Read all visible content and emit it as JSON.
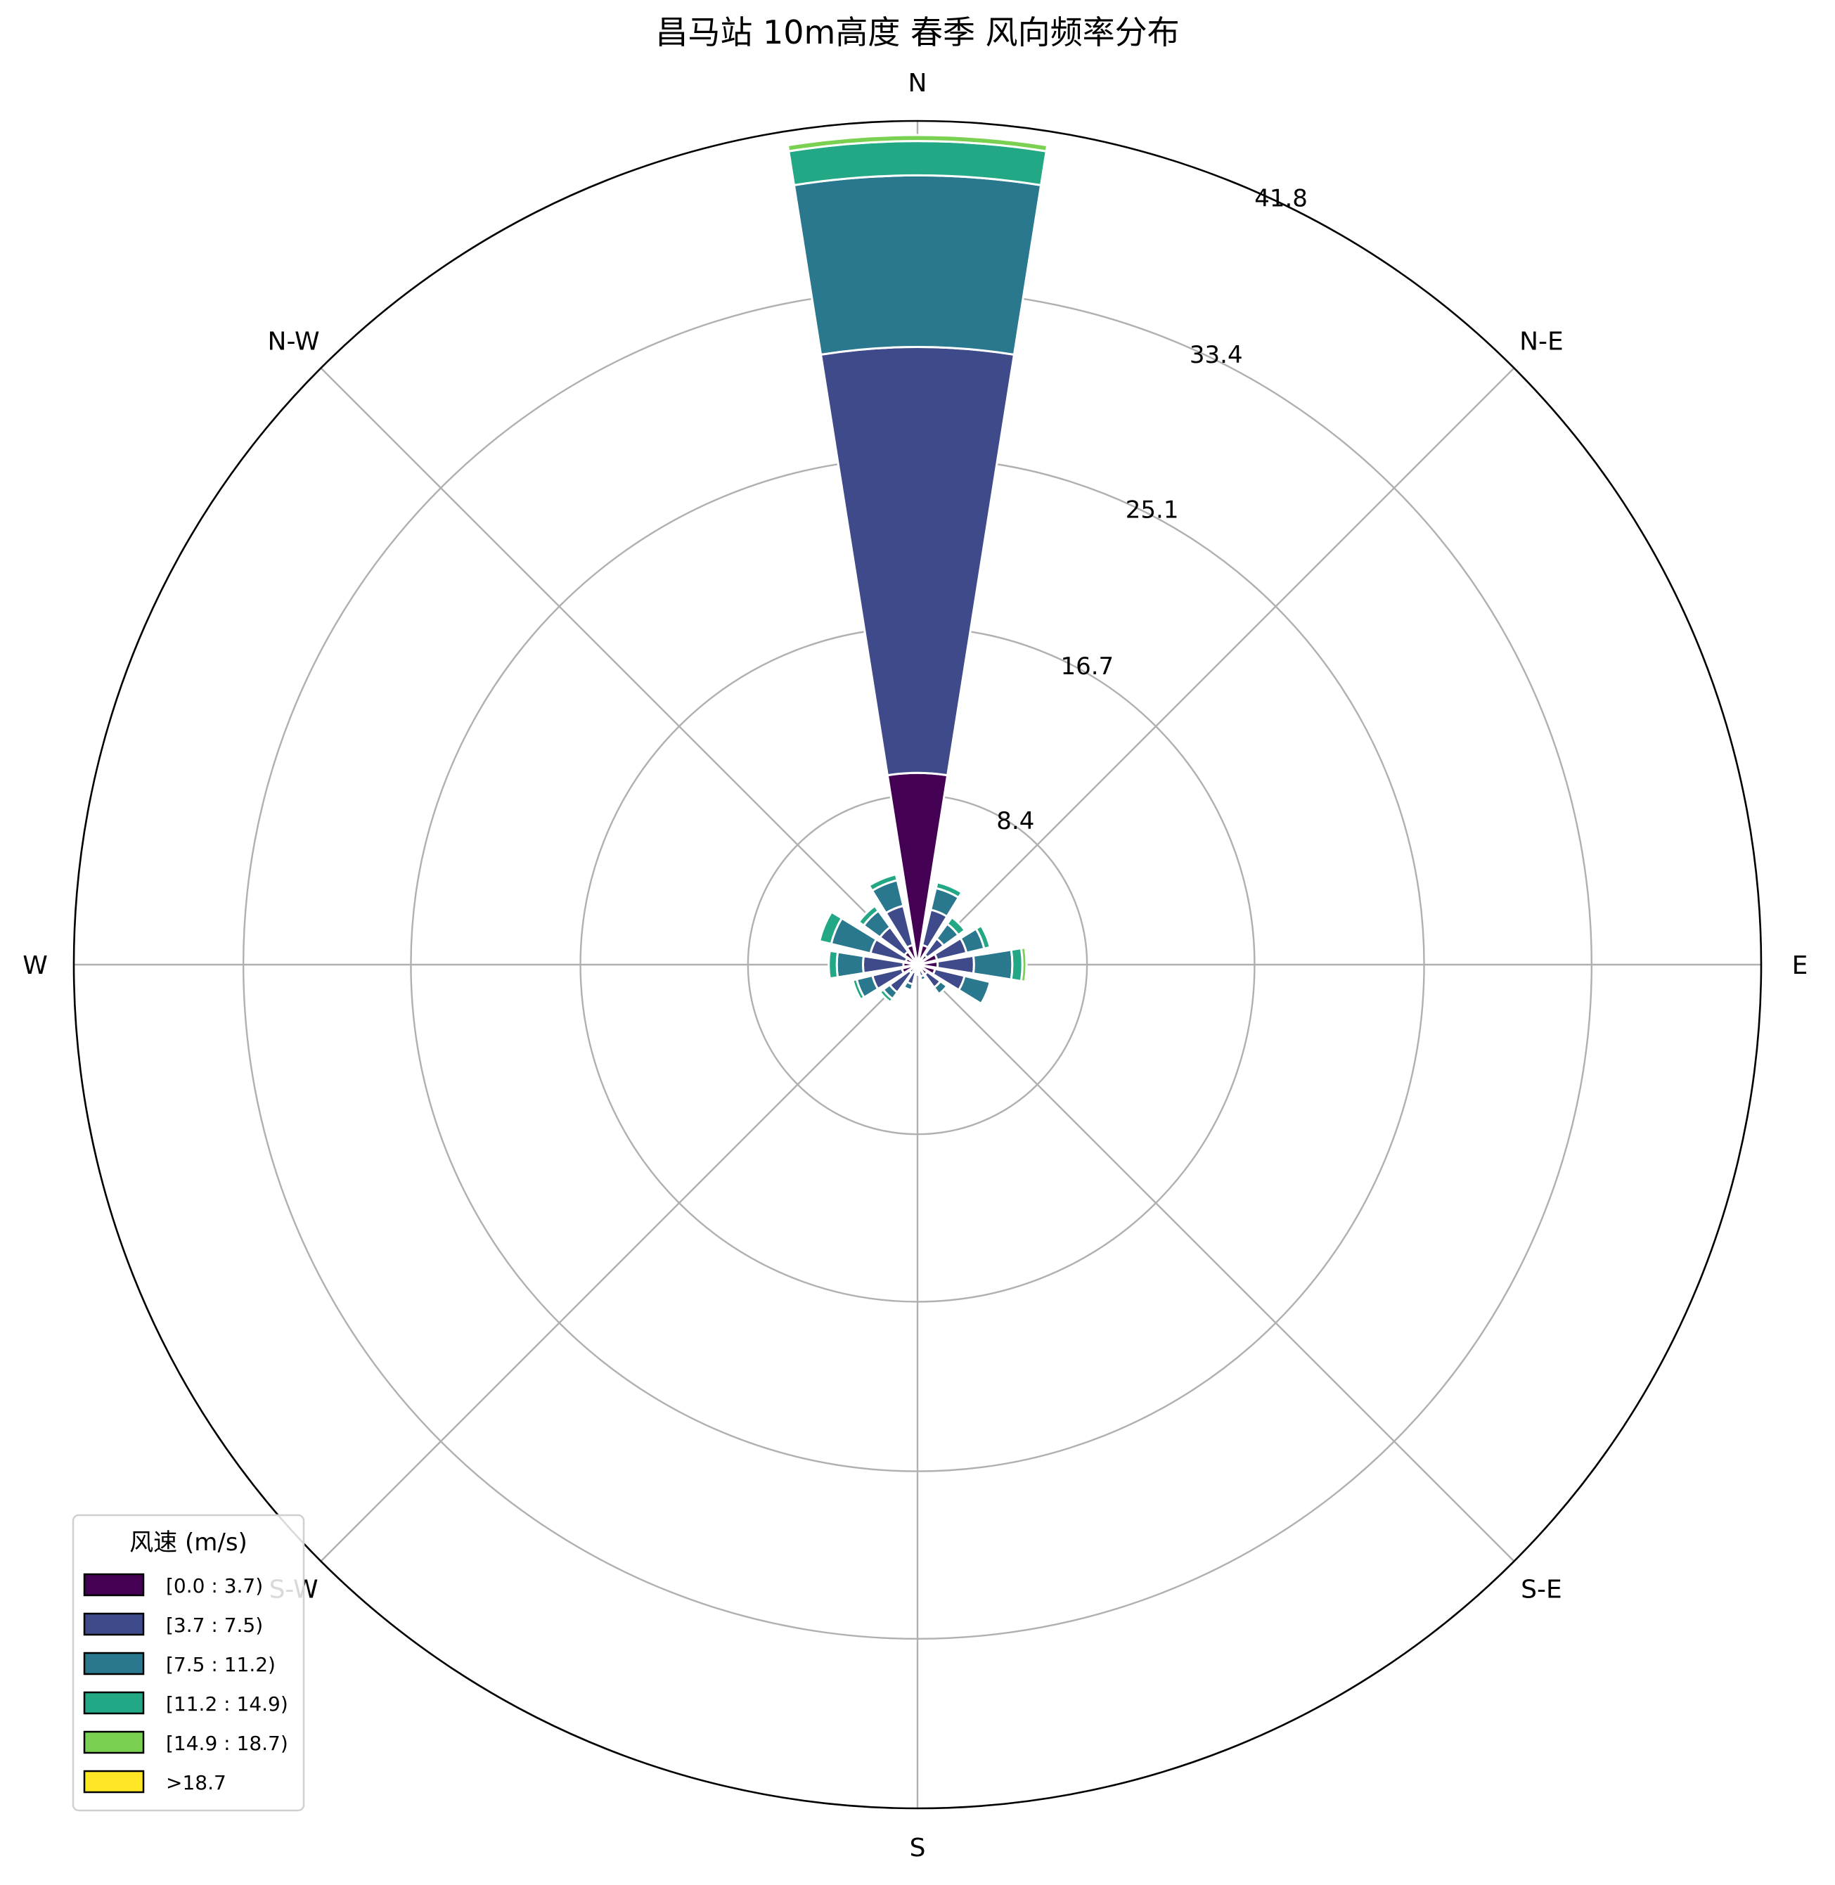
{
  "chart_data": {
    "type": "windrose",
    "title": "昌马站 10m高度 春季 风向频率分布",
    "direction_labels": [
      "N",
      "N-E",
      "E",
      "S-E",
      "S",
      "S-W",
      "W",
      "N-W"
    ],
    "radial_ticks": [
      "8.4",
      "16.7",
      "25.1",
      "33.4",
      "41.8"
    ],
    "radial_max": 41.8,
    "sector_count": 16,
    "sector_angles_deg": [
      0,
      22.5,
      45,
      67.5,
      90,
      112.5,
      135,
      157.5,
      180,
      202.5,
      225,
      247.5,
      270,
      292.5,
      315,
      337.5
    ],
    "series": [
      {
        "name": "[0.0 : 3.7)",
        "color": "#440154",
        "values": [
          9.5,
          1.0,
          0.6,
          1.0,
          1.0,
          0.9,
          0.6,
          0.3,
          0.2,
          0.4,
          0.5,
          0.8,
          0.7,
          0.6,
          0.8,
          1.0
        ]
      },
      {
        "name": "[3.7 : 7.5)",
        "color": "#3e4a89",
        "values": [
          21.1,
          1.8,
          1.0,
          1.5,
          1.8,
          1.5,
          0.8,
          0.3,
          0.2,
          0.6,
          1.2,
          1.5,
          2.0,
          1.8,
          1.5,
          2.0
        ]
      },
      {
        "name": "[7.5 : 11.2)",
        "color": "#2a788e",
        "values": [
          8.5,
          1.1,
          0.9,
          0.9,
          1.9,
          1.3,
          0.4,
          0.2,
          0.1,
          0.3,
          0.4,
          0.8,
          1.3,
          2.0,
          1.0,
          1.3
        ]
      },
      {
        "name": "[11.2 : 14.9)",
        "color": "#22a884",
        "values": [
          1.7,
          0.3,
          0.4,
          0.3,
          0.5,
          0.1,
          0.0,
          0.0,
          0.0,
          0.1,
          0.2,
          0.2,
          0.4,
          0.6,
          0.3,
          0.3
        ]
      },
      {
        "name": "[14.9 : 18.7)",
        "color": "#7ad151",
        "values": [
          0.3,
          0.0,
          0.0,
          0.0,
          0.2,
          0.0,
          0.0,
          0.0,
          0.0,
          0.0,
          0.0,
          0.0,
          0.0,
          0.1,
          0.0,
          0.0
        ]
      },
      {
        "name": ">18.7",
        "color": "#fde725",
        "values": [
          0.0,
          0.0,
          0.0,
          0.0,
          0.0,
          0.0,
          0.0,
          0.0,
          0.0,
          0.0,
          0.0,
          0.0,
          0.0,
          0.0,
          0.0,
          0.0
        ]
      }
    ],
    "legend": {
      "title": "风速 (m/s)",
      "placement": "lower-left"
    }
  }
}
